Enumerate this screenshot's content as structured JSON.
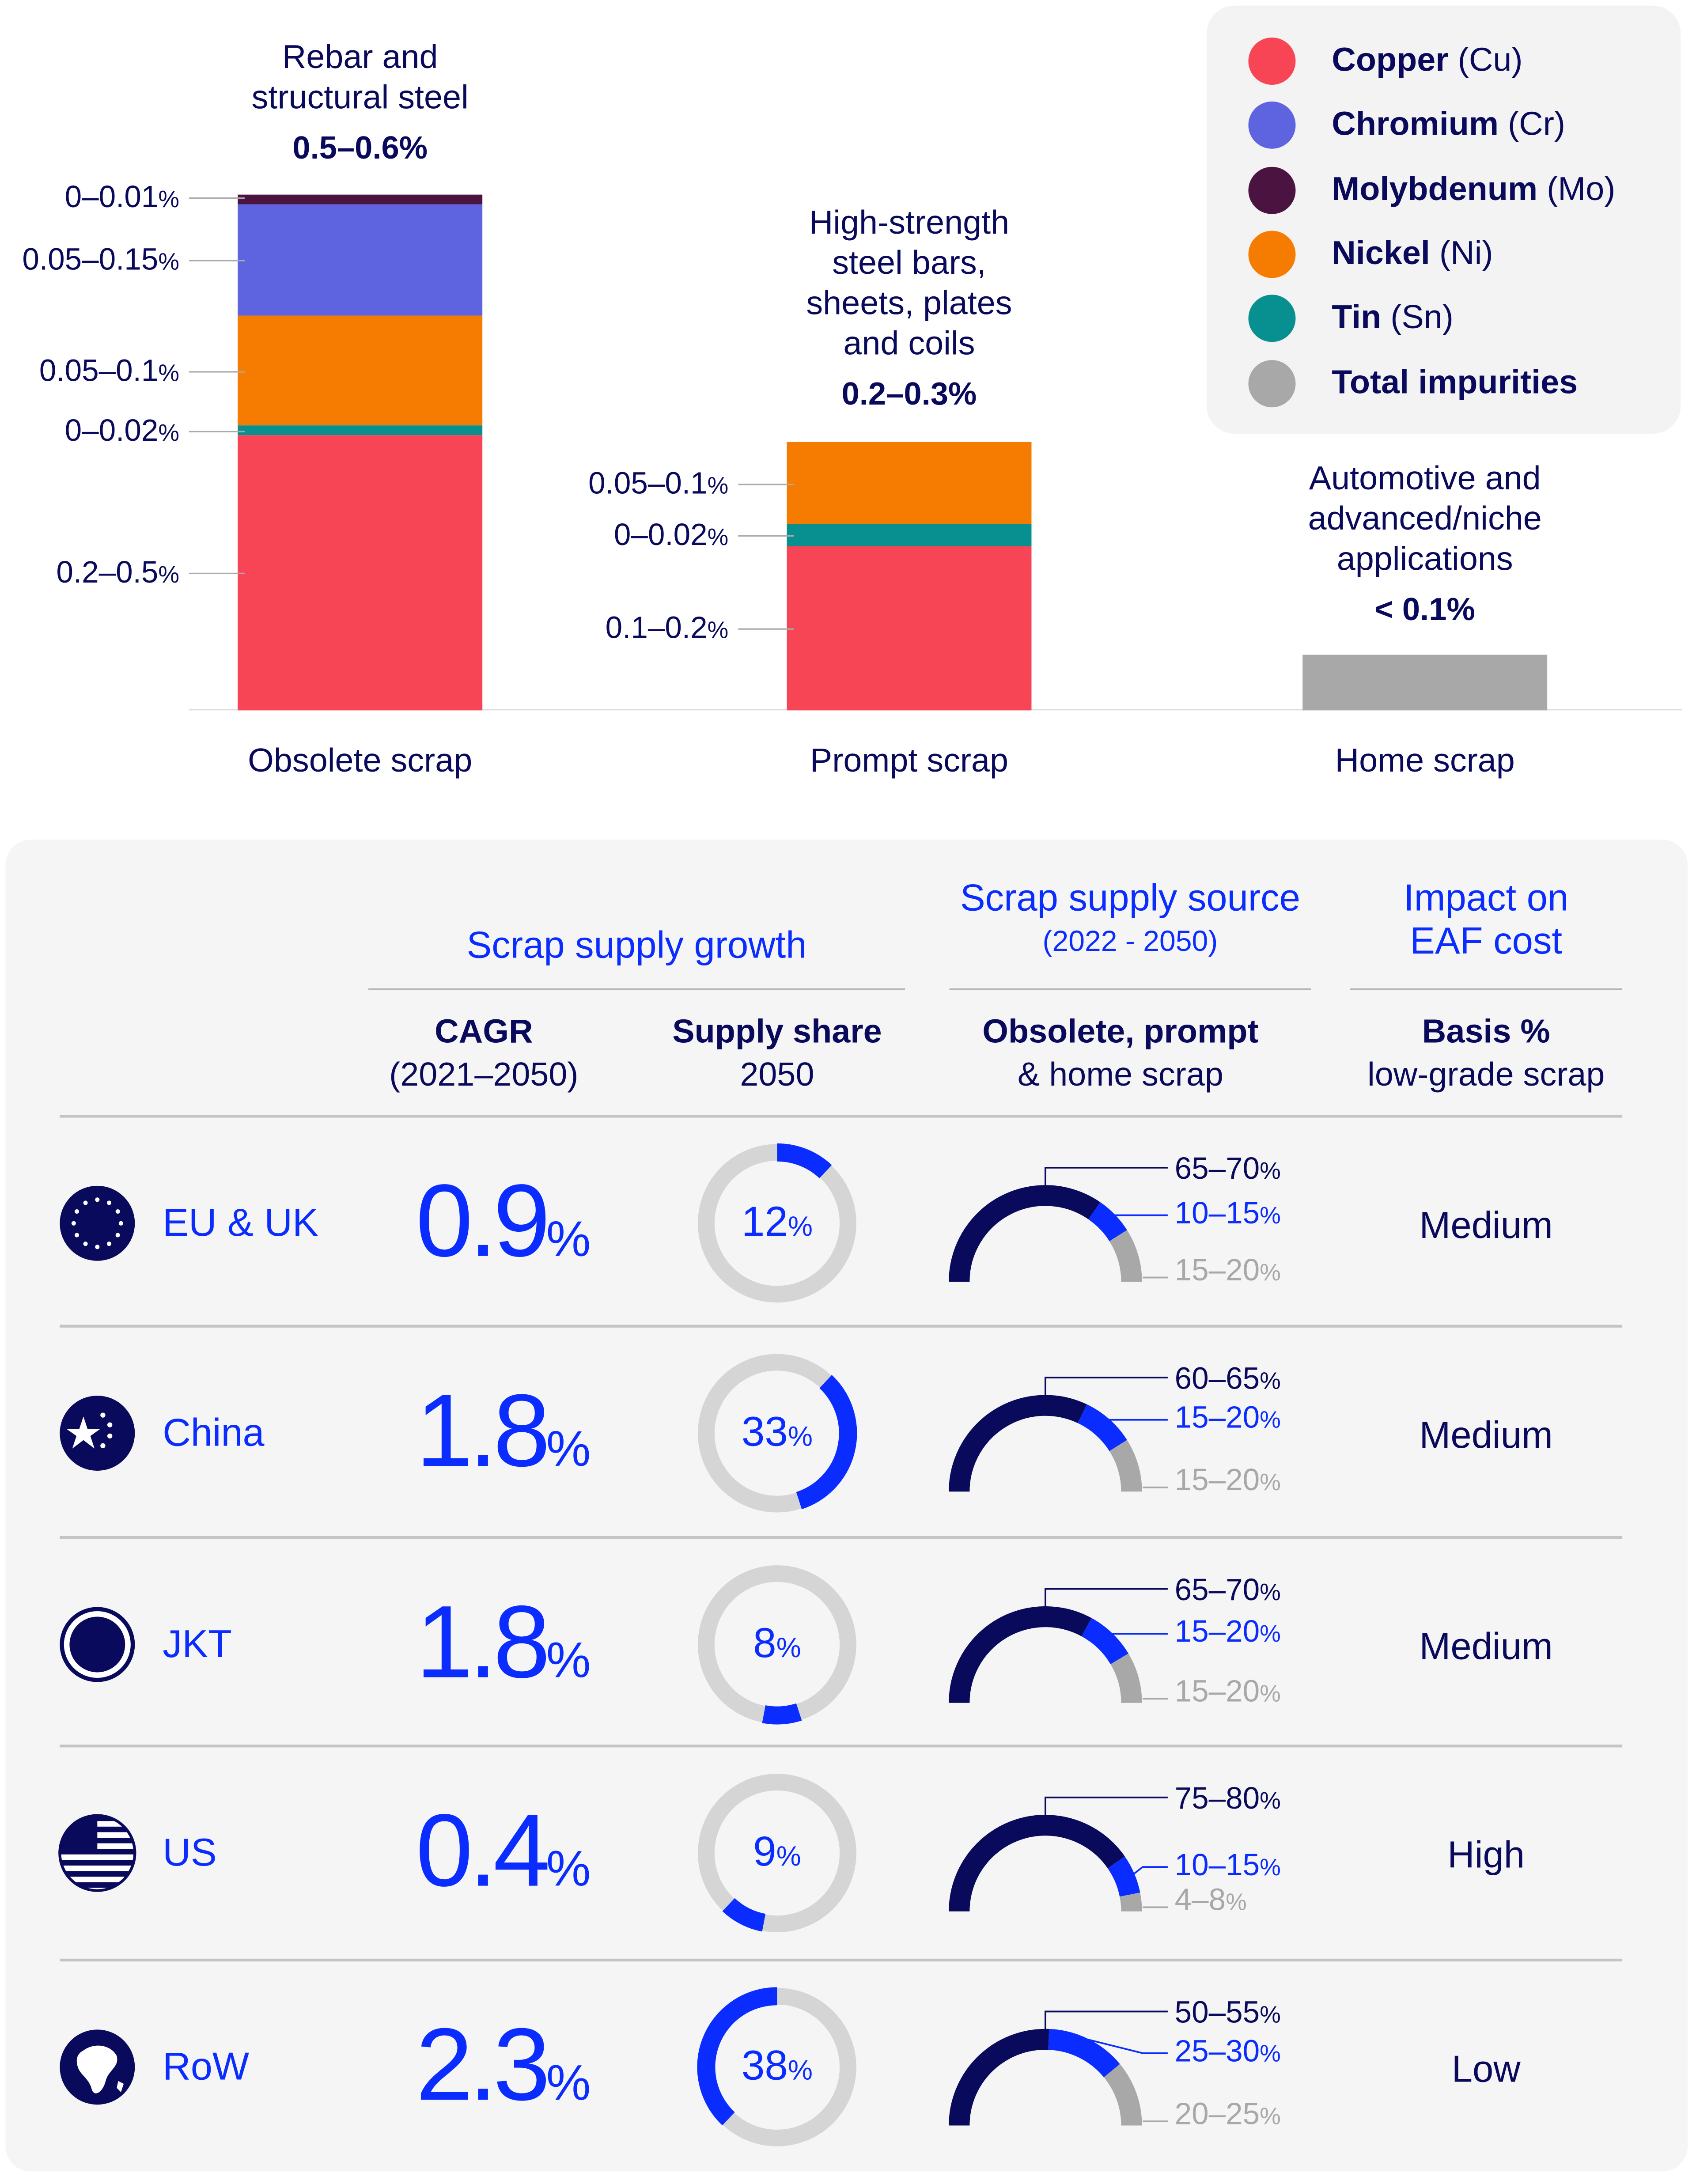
{
  "colors": {
    "copper": "#f74556",
    "chromium": "#5e63e0",
    "molybdenum": "#4b1340",
    "nickel": "#f57c00",
    "tin": "#089090",
    "impurities": "#a8a8a8",
    "navy": "#0a0a5c",
    "blue": "#0a2cff",
    "ring": "#d5d5d5"
  },
  "chart_data": [
    {
      "type": "bar",
      "stacked": true,
      "categories": [
        "Obsolete scrap",
        "Prompt scrap",
        "Home scrap"
      ],
      "bar_titles": [
        "Rebar and structural steel",
        "High-strength steel bars, sheets, plates and coils",
        "Automotive and advanced/niche applications"
      ],
      "totals": [
        "0.5–0.6%",
        "0.2–0.3%",
        "< 0.1%"
      ],
      "legend": [
        {
          "name": "Copper",
          "symbol": "(Cu)",
          "color": "#f74556"
        },
        {
          "name": "Chromium",
          "symbol": "(Cr)",
          "color": "#5e63e0"
        },
        {
          "name": "Molybdenum",
          "symbol": "(Mo)",
          "color": "#4b1340"
        },
        {
          "name": "Nickel",
          "symbol": "(Ni)",
          "color": "#f57c00"
        },
        {
          "name": "Tin",
          "symbol": "(Sn)",
          "color": "#089090"
        },
        {
          "name": "Total impurities",
          "symbol": "",
          "color": "#a8a8a8"
        }
      ],
      "legend_placement": "top-right",
      "bars": [
        {
          "segments": [
            {
              "element": "Copper",
              "range": [
                0.2,
                0.5
              ],
              "label": "0.2–0.5%"
            },
            {
              "element": "Tin",
              "range": [
                0,
                0.02
              ],
              "label": "0–0.02%"
            },
            {
              "element": "Nickel",
              "range": [
                0.05,
                0.1
              ],
              "label": "0.05–0.1%"
            },
            {
              "element": "Chromium",
              "range": [
                0.05,
                0.15
              ],
              "label": "0.05–0.15%"
            },
            {
              "element": "Molybdenum",
              "range": [
                0,
                0.01
              ],
              "label": "0–0.01%"
            }
          ]
        },
        {
          "segments": [
            {
              "element": "Copper",
              "range": [
                0.1,
                0.2
              ],
              "label": "0.1–0.2%"
            },
            {
              "element": "Tin",
              "range": [
                0,
                0.02
              ],
              "label": "0–0.02%"
            },
            {
              "element": "Nickel",
              "range": [
                0.05,
                0.1
              ],
              "label": "0.05–0.1%"
            }
          ]
        },
        {
          "segments": [
            {
              "element": "Total impurities",
              "range": [
                0,
                0.1
              ],
              "label": ""
            }
          ]
        }
      ]
    },
    {
      "type": "table",
      "headers": {
        "growth": "Scrap supply growth",
        "source": "Scrap supply source",
        "source_period": "(2022 - 2050)",
        "impact": [
          "Impact on",
          "EAF cost"
        ],
        "cagr": [
          "CAGR",
          "(2021–2050)"
        ],
        "share": [
          "Supply share",
          "2050"
        ],
        "mix": [
          "Obsolete, prompt",
          "& home scrap"
        ],
        "basis": [
          "Basis %",
          "low-grade scrap"
        ]
      },
      "rows": [
        {
          "region": "EU & UK",
          "flag": "eu-flag-icon",
          "cagr": "0.9",
          "share": 12,
          "share_start": 0,
          "obsolete": "65–70",
          "prompt": "10–15",
          "home": "15–20",
          "mix": [
            67.5,
            12.5,
            17.5
          ],
          "impact": "Medium"
        },
        {
          "region": "China",
          "flag": "china-flag-icon",
          "cagr": "1.8",
          "share": 33,
          "share_start": 12,
          "obsolete": "60–65",
          "prompt": "15–20",
          "home": "15–20",
          "mix": [
            62.5,
            17.5,
            17.5
          ],
          "impact": "Medium"
        },
        {
          "region": "JKT",
          "flag": "jkt-flag-icon",
          "cagr": "1.8",
          "share": 8,
          "share_start": 45,
          "obsolete": "65–70",
          "prompt": "15–20",
          "home": "15–20",
          "mix": [
            67.5,
            17.5,
            17.5
          ],
          "impact": "Medium"
        },
        {
          "region": "US",
          "flag": "us-flag-icon",
          "cagr": "0.4",
          "share": 9,
          "share_start": 53,
          "obsolete": "75–80",
          "prompt": "10–15",
          "home": "4–8",
          "mix": [
            77.5,
            12.5,
            6
          ],
          "impact": "High"
        },
        {
          "region": "RoW",
          "flag": "globe-icon",
          "cagr": "2.3",
          "share": 38,
          "share_start": 62,
          "obsolete": "50–55",
          "prompt": "25–30",
          "home": "20–25",
          "mix": [
            52.5,
            27.5,
            22.5
          ],
          "impact": "Low"
        }
      ],
      "percent": "%"
    }
  ]
}
